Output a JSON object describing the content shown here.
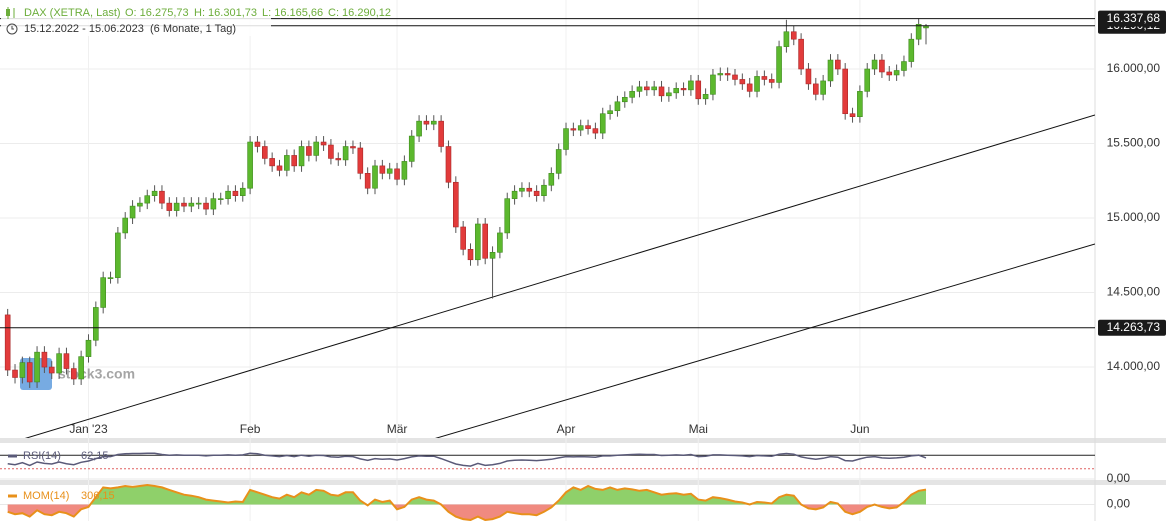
{
  "header": {
    "instrument": "DAX (XETRA, Last)",
    "open": "O: 16.275,73",
    "high": "H: 16.301,73",
    "low": "L: 16.165,66",
    "close": "C: 16.290,12",
    "range": "15.12.2022 - 15.06.2023",
    "period": "(6 Monate, 1 Tag)",
    "watermark": "stock3.com"
  },
  "chart_data": {
    "type": "candlestick",
    "categories": [
      null,
      null,
      null,
      null,
      null,
      null,
      null,
      null,
      null,
      null,
      null,
      "Jan '23",
      null,
      null,
      null,
      null,
      null,
      null,
      null,
      null,
      null,
      null,
      null,
      null,
      null,
      null,
      null,
      null,
      null,
      null,
      null,
      null,
      null,
      "Feb",
      null,
      null,
      null,
      null,
      null,
      null,
      null,
      null,
      null,
      null,
      null,
      null,
      null,
      null,
      null,
      null,
      null,
      null,
      null,
      "Mär",
      null,
      null,
      null,
      null,
      null,
      null,
      null,
      null,
      null,
      null,
      null,
      null,
      null,
      null,
      null,
      null,
      null,
      null,
      null,
      null,
      null,
      null,
      "Apr",
      null,
      null,
      null,
      null,
      null,
      null,
      null,
      null,
      null,
      null,
      null,
      null,
      null,
      null,
      null,
      null,
      null,
      "Mai",
      null,
      null,
      null,
      null,
      null,
      null,
      null,
      null,
      null,
      null,
      null,
      null,
      null,
      null,
      null,
      null,
      null,
      null,
      null,
      null,
      null,
      "Jun",
      null,
      null,
      null,
      null,
      null,
      null,
      null,
      null,
      null
    ],
    "open": [
      14350,
      13980,
      13930,
      14030,
      13900,
      14100,
      14000,
      13960,
      14090,
      13990,
      13920,
      14070,
      14180,
      14400,
      14600,
      14600,
      14900,
      15000,
      15080,
      15100,
      15150,
      15180,
      15100,
      15050,
      15100,
      15080,
      15100,
      15100,
      15060,
      15130,
      15130,
      15180,
      15150,
      15200,
      15510,
      15480,
      15400,
      15350,
      15320,
      15420,
      15350,
      15480,
      15420,
      15510,
      15490,
      15400,
      15390,
      15480,
      15470,
      15300,
      15200,
      15350,
      15300,
      15330,
      15260,
      15380,
      15550,
      15650,
      15630,
      15650,
      15480,
      15240,
      14940,
      14790,
      14720,
      14960,
      14730,
      14770,
      14900,
      15130,
      15180,
      15200,
      15180,
      15150,
      15220,
      15300,
      15460,
      15600,
      15590,
      15620,
      15600,
      15570,
      15700,
      15720,
      15780,
      15810,
      15850,
      15880,
      15860,
      15880,
      15820,
      15840,
      15870,
      15860,
      15920,
      15800,
      15830,
      15960,
      15970,
      15960,
      15930,
      15900,
      15850,
      15950,
      15930,
      15910,
      16150,
      16250,
      16200,
      16000,
      15900,
      15830,
      15920,
      16060,
      16000,
      15700,
      15680,
      15850,
      16000,
      16060,
      15980,
      15960,
      15990,
      16050,
      16200,
      16275.73
    ],
    "high": [
      14390,
      14020,
      14070,
      14070,
      14140,
      14140,
      14040,
      14130,
      14130,
      14030,
      14110,
      14220,
      14440,
      14640,
      14640,
      14940,
      15040,
      15120,
      15140,
      15190,
      15220,
      15220,
      15140,
      15140,
      15140,
      15140,
      15140,
      15140,
      15170,
      15170,
      15220,
      15220,
      15240,
      15550,
      15550,
      15520,
      15440,
      15390,
      15460,
      15460,
      15520,
      15520,
      15550,
      15550,
      15530,
      15440,
      15520,
      15520,
      15510,
      15340,
      15390,
      15390,
      15370,
      15370,
      15420,
      15590,
      15690,
      15690,
      15690,
      15690,
      15520,
      15280,
      14980,
      14830,
      15000,
      15000,
      14810,
      14940,
      15170,
      15220,
      15240,
      15240,
      15220,
      15260,
      15340,
      15500,
      15640,
      15640,
      15660,
      15660,
      15640,
      15740,
      15760,
      15820,
      15850,
      15890,
      15920,
      15920,
      15920,
      15920,
      15880,
      15910,
      15910,
      15960,
      15960,
      15870,
      16000,
      16010,
      16010,
      16000,
      15970,
      15940,
      15990,
      15990,
      15970,
      16190,
      16330,
      16290,
      16240,
      16040,
      15940,
      15960,
      16100,
      16100,
      16040,
      15740,
      15890,
      16040,
      16100,
      16100,
      16020,
      16030,
      16090,
      16240,
      16340,
      16301.73
    ],
    "low": [
      13940,
      13890,
      13890,
      13860,
      13860,
      13960,
      13920,
      13920,
      13950,
      13880,
      13880,
      14030,
      14140,
      14360,
      14560,
      14560,
      14860,
      14960,
      15040,
      15060,
      15110,
      15060,
      15010,
      15010,
      15040,
      15040,
      15060,
      15020,
      15020,
      15090,
      15090,
      15110,
      15110,
      15160,
      15440,
      15360,
      15310,
      15280,
      15280,
      15310,
      15310,
      15380,
      15380,
      15450,
      15360,
      15350,
      15350,
      15430,
      15260,
      15160,
      15160,
      15260,
      15260,
      15220,
      15220,
      15340,
      15510,
      15590,
      15590,
      15440,
      15200,
      14900,
      14750,
      14680,
      14680,
      14690,
      14460,
      14730,
      14860,
      15090,
      15140,
      15140,
      15110,
      15110,
      15180,
      15260,
      15420,
      15550,
      15550,
      15560,
      15530,
      15530,
      15660,
      15680,
      15740,
      15770,
      15810,
      15820,
      15820,
      15780,
      15780,
      15800,
      15820,
      15820,
      15760,
      15760,
      15790,
      15920,
      15920,
      15890,
      15860,
      15810,
      15810,
      15890,
      15870,
      15870,
      16110,
      16160,
      15960,
      15860,
      15790,
      15790,
      15880,
      15960,
      15660,
      15640,
      15640,
      15810,
      15960,
      15940,
      15920,
      15920,
      15950,
      16010,
      16160,
      16165.66
    ],
    "close": [
      13980,
      13930,
      14030,
      13900,
      14100,
      14000,
      13960,
      14090,
      13990,
      13920,
      14070,
      14180,
      14400,
      14600,
      14600,
      14900,
      15000,
      15080,
      15100,
      15150,
      15180,
      15100,
      15050,
      15100,
      15080,
      15100,
      15100,
      15060,
      15130,
      15130,
      15180,
      15150,
      15200,
      15510,
      15480,
      15400,
      15350,
      15320,
      15420,
      15350,
      15480,
      15420,
      15510,
      15490,
      15400,
      15390,
      15480,
      15470,
      15300,
      15200,
      15350,
      15300,
      15330,
      15260,
      15380,
      15550,
      15650,
      15630,
      15650,
      15480,
      15240,
      14940,
      14790,
      14720,
      14960,
      14730,
      14770,
      14900,
      15130,
      15180,
      15200,
      15180,
      15150,
      15220,
      15300,
      15460,
      15600,
      15590,
      15620,
      15600,
      15570,
      15700,
      15720,
      15780,
      15810,
      15850,
      15880,
      15860,
      15880,
      15820,
      15840,
      15870,
      15860,
      15920,
      15800,
      15830,
      15960,
      15970,
      15960,
      15930,
      15900,
      15850,
      15950,
      15930,
      15910,
      16150,
      16250,
      16200,
      16000,
      15900,
      15830,
      15920,
      16060,
      16000,
      15700,
      15680,
      15850,
      16000,
      16060,
      15980,
      15960,
      15990,
      16050,
      16200,
      16300,
      16290.12
    ],
    "up_color": "#5cb82e",
    "down_color": "#e23b3b",
    "ylim": [
      13524,
      16463
    ],
    "yticks": [
      {
        "value": 14000,
        "label": "14.000,00"
      },
      {
        "value": 14500,
        "label": "14.500,00"
      },
      {
        "value": 15000,
        "label": "15.000,00"
      },
      {
        "value": 15500,
        "label": "15.500,00"
      },
      {
        "value": 16000,
        "label": "16.000,00"
      }
    ],
    "grid": true,
    "price_lines": [
      {
        "value": 16290.12,
        "label": "16.290,12"
      },
      {
        "value": 16337.68,
        "label": "16.337,68"
      },
      {
        "value": 14263.73,
        "label": "14.263,73"
      }
    ],
    "indicators": [
      {
        "name": "RSI(14)",
        "value_label": "62,15",
        "color": "#5a5a78",
        "ylim": [
          0,
          100
        ],
        "yticks": [
          {
            "value": 0,
            "label": "0,00"
          }
        ],
        "levels": [
          30,
          70
        ],
        "values": [
          45,
          42,
          48,
          40,
          50,
          46,
          44,
          50,
          45,
          42,
          49,
          53,
          60,
          66,
          66,
          72,
          74,
          75,
          75,
          76,
          76,
          72,
          70,
          71,
          70,
          70,
          70,
          68,
          70,
          70,
          71,
          70,
          71,
          76,
          74,
          70,
          68,
          66,
          69,
          66,
          70,
          67,
          70,
          69,
          65,
          64,
          67,
          66,
          59,
          55,
          60,
          58,
          59,
          56,
          60,
          65,
          68,
          67,
          67,
          60,
          52,
          44,
          40,
          38,
          46,
          40,
          42,
          46,
          53,
          55,
          56,
          55,
          54,
          56,
          58,
          62,
          66,
          65,
          66,
          65,
          64,
          68,
          68,
          70,
          71,
          72,
          73,
          72,
          72,
          69,
          70,
          71,
          70,
          72,
          66,
          67,
          71,
          71,
          70,
          69,
          68,
          66,
          69,
          68,
          67,
          73,
          75,
          73,
          65,
          61,
          58,
          61,
          66,
          64,
          54,
          53,
          59,
          64,
          66,
          62,
          61,
          62,
          64,
          68,
          70,
          62.15
        ]
      },
      {
        "name": "MOM(14)",
        "value_label": "306,15",
        "color": "#e8901a",
        "ylim": [
          -340,
          400
        ],
        "yticks": [
          {
            "value": 0,
            "label": "0,00"
          }
        ],
        "values": [
          -150,
          -200,
          -180,
          -250,
          -120,
          -200,
          -220,
          -150,
          -180,
          -250,
          -100,
          -50,
          150,
          350,
          330,
          350,
          380,
          360,
          380,
          400,
          380,
          350,
          300,
          250,
          200,
          180,
          150,
          100,
          80,
          60,
          40,
          60,
          50,
          300,
          250,
          200,
          150,
          120,
          200,
          150,
          250,
          200,
          300,
          280,
          200,
          180,
          250,
          250,
          80,
          -20,
          100,
          50,
          80,
          -100,
          -50,
          100,
          150,
          100,
          80,
          0,
          -150,
          -250,
          -300,
          -320,
          -250,
          -320,
          -300,
          -250,
          -150,
          -180,
          -200,
          -200,
          -220,
          -150,
          -60,
          80,
          250,
          350,
          300,
          380,
          320,
          300,
          350,
          300,
          330,
          310,
          280,
          300,
          250,
          200,
          220,
          230,
          200,
          220,
          100,
          80,
          150,
          130,
          100,
          60,
          40,
          0,
          50,
          40,
          20,
          150,
          200,
          180,
          0,
          -80,
          -100,
          -60,
          50,
          20,
          -150,
          -200,
          -150,
          -50,
          0,
          -50,
          -80,
          -60,
          50,
          200,
          280,
          306.15
        ]
      }
    ]
  }
}
